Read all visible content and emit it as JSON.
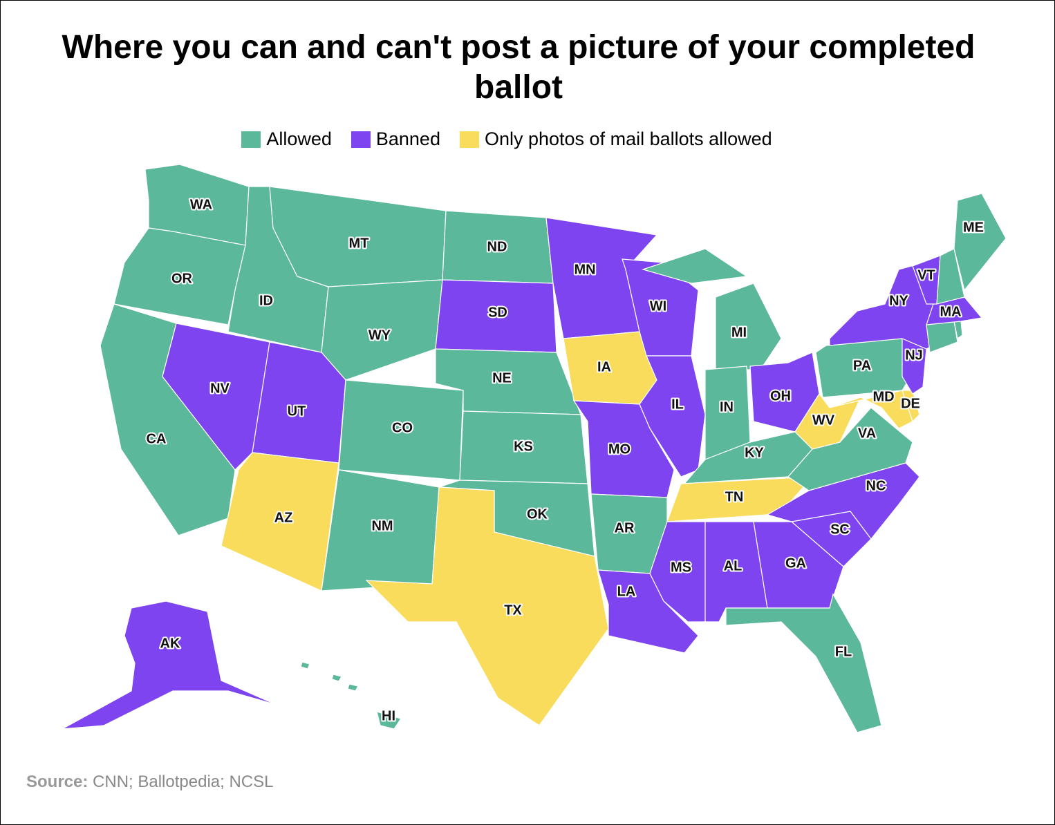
{
  "title": "Where you can and can't post a picture of your completed ballot",
  "legend": [
    {
      "name": "Allowed",
      "color": "#5cb89a"
    },
    {
      "name": "Banned",
      "color": "#7e44f0"
    },
    {
      "name": "Only photos of mail ballots allowed",
      "color": "#f9dc5c"
    }
  ],
  "states": [
    {
      "label": "WA",
      "status": "Allowed"
    },
    {
      "label": "OR",
      "status": "Allowed"
    },
    {
      "label": "CA",
      "status": "Allowed"
    },
    {
      "label": "NV",
      "status": "Banned"
    },
    {
      "label": "ID",
      "status": "Allowed"
    },
    {
      "label": "MT",
      "status": "Allowed"
    },
    {
      "label": "WY",
      "status": "Allowed"
    },
    {
      "label": "UT",
      "status": "Banned"
    },
    {
      "label": "AZ",
      "status": "Only photos of mail ballots allowed"
    },
    {
      "label": "CO",
      "status": "Allowed"
    },
    {
      "label": "NM",
      "status": "Allowed"
    },
    {
      "label": "ND",
      "status": "Allowed"
    },
    {
      "label": "SD",
      "status": "Banned"
    },
    {
      "label": "NE",
      "status": "Allowed"
    },
    {
      "label": "KS",
      "status": "Allowed"
    },
    {
      "label": "OK",
      "status": "Allowed"
    },
    {
      "label": "TX",
      "status": "Only photos of mail ballots allowed"
    },
    {
      "label": "MN",
      "status": "Banned"
    },
    {
      "label": "IA",
      "status": "Only photos of mail ballots allowed"
    },
    {
      "label": "MO",
      "status": "Banned"
    },
    {
      "label": "AR",
      "status": "Allowed"
    },
    {
      "label": "LA",
      "status": "Banned"
    },
    {
      "label": "WI",
      "status": "Banned"
    },
    {
      "label": "IL",
      "status": "Banned"
    },
    {
      "label": "MI",
      "status": "Allowed"
    },
    {
      "label": "IN",
      "status": "Allowed"
    },
    {
      "label": "OH",
      "status": "Banned"
    },
    {
      "label": "KY",
      "status": "Allowed"
    },
    {
      "label": "TN",
      "status": "Only photos of mail ballots allowed"
    },
    {
      "label": "MS",
      "status": "Banned"
    },
    {
      "label": "AL",
      "status": "Banned"
    },
    {
      "label": "GA",
      "status": "Banned"
    },
    {
      "label": "FL",
      "status": "Allowed"
    },
    {
      "label": "SC",
      "status": "Banned"
    },
    {
      "label": "NC",
      "status": "Banned"
    },
    {
      "label": "VA",
      "status": "Allowed"
    },
    {
      "label": "WV",
      "status": "Only photos of mail ballots allowed"
    },
    {
      "label": "PA",
      "status": "Allowed"
    },
    {
      "label": "MD",
      "status": "Only photos of mail ballots allowed"
    },
    {
      "label": "DE",
      "status": "Only photos of mail ballots allowed"
    },
    {
      "label": "NJ",
      "status": "Banned"
    },
    {
      "label": "NY",
      "status": "Banned"
    },
    {
      "label": null,
      "status": "Allowed"
    },
    {
      "label": null,
      "status": "Allowed"
    },
    {
      "label": "MA",
      "status": "Banned"
    },
    {
      "label": "VT",
      "status": "Banned"
    },
    {
      "label": null,
      "status": "Allowed"
    },
    {
      "label": "ME",
      "status": "Allowed"
    },
    {
      "label": "AK",
      "status": "Banned"
    },
    {
      "label": "HI",
      "status": "Allowed"
    }
  ],
  "source": {
    "prefix": "Source:",
    "text": "CNN; Ballotpedia; NCSL"
  }
}
